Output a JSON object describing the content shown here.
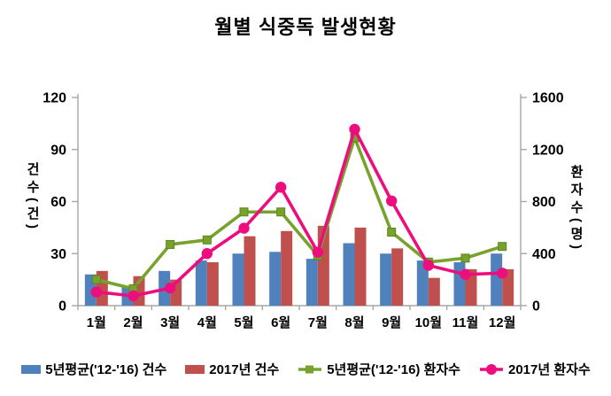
{
  "title": "월별 식중독 발생현황",
  "chart_data": {
    "type": "bar",
    "subtype": "combo-bar-line-dual-axis",
    "title": "월별 식중독 발생현황",
    "categories": [
      "1월",
      "2월",
      "3월",
      "4월",
      "5월",
      "6월",
      "7월",
      "8월",
      "9월",
      "10월",
      "11월",
      "12월"
    ],
    "series": [
      {
        "name": "5년평균('12-'16) 건수",
        "type": "bar",
        "axis": "left",
        "color": "#4F81BD",
        "marker": "none",
        "values": [
          18,
          11,
          20,
          26,
          30,
          31,
          27,
          36,
          30,
          26,
          25,
          30
        ]
      },
      {
        "name": "2017년 건수",
        "type": "bar",
        "axis": "left",
        "color": "#C0504D",
        "marker": "none",
        "values": [
          20,
          17,
          15,
          25,
          40,
          43,
          46,
          45,
          33,
          16,
          21,
          21
        ]
      },
      {
        "name": "5년평균('12-'16) 환자수",
        "type": "line",
        "axis": "right",
        "color": "#77A32C",
        "marker": "square",
        "values": [
          200,
          130,
          470,
          505,
          720,
          720,
          385,
          1290,
          565,
          335,
          365,
          455
        ]
      },
      {
        "name": "2017년 환자수",
        "type": "line",
        "axis": "right",
        "color": "#ED0E7E",
        "marker": "circle",
        "values": [
          105,
          75,
          135,
          400,
          595,
          910,
          410,
          1355,
          805,
          310,
          240,
          250
        ]
      }
    ],
    "left_axis": {
      "label": "건수(건)",
      "ticks": [
        0,
        30,
        60,
        90,
        120
      ],
      "min": 0,
      "max": 120
    },
    "right_axis": {
      "label": "환자수(명)",
      "ticks": [
        0,
        400,
        800,
        1200,
        1600
      ],
      "min": 0,
      "max": 1600
    },
    "grid": false,
    "legend_position": "bottom",
    "axis_color": "#a6a6a6",
    "text_color": "#000000"
  }
}
